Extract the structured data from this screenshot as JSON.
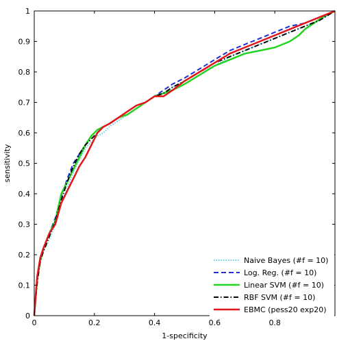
{
  "chart_data": {
    "type": "line",
    "xlabel": "1-specificity",
    "ylabel": "sensitivity",
    "xlim": [
      0,
      1
    ],
    "ylim": [
      0,
      1
    ],
    "x_ticks": [
      0,
      0.2,
      0.4,
      0.6,
      0.8
    ],
    "y_ticks": [
      0,
      0.1,
      0.2,
      0.3,
      0.4,
      0.5,
      0.6,
      0.7,
      0.8,
      0.9,
      1
    ],
    "legend_position": "bottom-right",
    "series": [
      {
        "name": "Naive Bayes (#f = 10)",
        "color": "#5fd3e3",
        "style": "dotted",
        "x": [
          0,
          0.005,
          0.01,
          0.02,
          0.03,
          0.05,
          0.07,
          0.09,
          0.11,
          0.13,
          0.15,
          0.17,
          0.19,
          0.21,
          0.23,
          0.25,
          0.28,
          0.31,
          0.34,
          0.37,
          0.4,
          0.43,
          0.46,
          0.5,
          0.55,
          0.6,
          0.65,
          0.7,
          0.75,
          0.8,
          0.85,
          0.9,
          0.95,
          1.0
        ],
        "y": [
          0,
          0.06,
          0.12,
          0.18,
          0.21,
          0.25,
          0.3,
          0.37,
          0.42,
          0.47,
          0.51,
          0.55,
          0.57,
          0.59,
          0.6,
          0.62,
          0.64,
          0.66,
          0.68,
          0.7,
          0.72,
          0.73,
          0.75,
          0.77,
          0.8,
          0.82,
          0.85,
          0.87,
          0.89,
          0.91,
          0.93,
          0.95,
          0.97,
          1.0
        ]
      },
      {
        "name": "Log. Reg. (#f = 10)",
        "color": "#1f2fd6",
        "style": "dashed",
        "x": [
          0,
          0.005,
          0.01,
          0.02,
          0.03,
          0.05,
          0.07,
          0.09,
          0.11,
          0.13,
          0.15,
          0.17,
          0.19,
          0.21,
          0.23,
          0.25,
          0.28,
          0.31,
          0.34,
          0.37,
          0.4,
          0.43,
          0.46,
          0.5,
          0.55,
          0.6,
          0.65,
          0.7,
          0.75,
          0.8,
          0.85,
          0.9,
          0.95,
          1.0
        ],
        "y": [
          0,
          0.07,
          0.13,
          0.19,
          0.22,
          0.27,
          0.32,
          0.39,
          0.45,
          0.5,
          0.53,
          0.56,
          0.59,
          0.61,
          0.62,
          0.63,
          0.65,
          0.67,
          0.69,
          0.7,
          0.72,
          0.74,
          0.76,
          0.78,
          0.81,
          0.84,
          0.87,
          0.89,
          0.91,
          0.93,
          0.95,
          0.96,
          0.98,
          1.0
        ]
      },
      {
        "name": "Linear SVM (#f = 10)",
        "color": "#22d322",
        "style": "solid",
        "x": [
          0,
          0.005,
          0.01,
          0.02,
          0.03,
          0.05,
          0.07,
          0.09,
          0.11,
          0.13,
          0.15,
          0.17,
          0.19,
          0.21,
          0.23,
          0.25,
          0.28,
          0.31,
          0.34,
          0.37,
          0.4,
          0.43,
          0.46,
          0.5,
          0.55,
          0.6,
          0.65,
          0.7,
          0.75,
          0.8,
          0.85,
          0.88,
          0.9,
          0.93,
          0.96,
          1.0
        ],
        "y": [
          0,
          0.06,
          0.12,
          0.18,
          0.22,
          0.27,
          0.31,
          0.4,
          0.44,
          0.48,
          0.52,
          0.56,
          0.59,
          0.61,
          0.62,
          0.63,
          0.65,
          0.66,
          0.68,
          0.7,
          0.72,
          0.73,
          0.74,
          0.76,
          0.79,
          0.82,
          0.84,
          0.86,
          0.87,
          0.88,
          0.9,
          0.92,
          0.94,
          0.96,
          0.98,
          1.0
        ]
      },
      {
        "name": "RBF SVM (#f = 10)",
        "color": "#000000",
        "style": "dashdot",
        "x": [
          0,
          0.005,
          0.01,
          0.02,
          0.03,
          0.05,
          0.07,
          0.09,
          0.11,
          0.13,
          0.15,
          0.17,
          0.19,
          0.21,
          0.23,
          0.25,
          0.28,
          0.31,
          0.34,
          0.37,
          0.4,
          0.43,
          0.46,
          0.5,
          0.55,
          0.6,
          0.65,
          0.7,
          0.75,
          0.8,
          0.85,
          0.9,
          0.95,
          1.0
        ],
        "y": [
          0,
          0.06,
          0.11,
          0.18,
          0.21,
          0.26,
          0.31,
          0.38,
          0.44,
          0.49,
          0.53,
          0.56,
          0.58,
          0.6,
          0.62,
          0.63,
          0.65,
          0.67,
          0.69,
          0.7,
          0.72,
          0.73,
          0.75,
          0.77,
          0.8,
          0.83,
          0.85,
          0.87,
          0.89,
          0.91,
          0.93,
          0.95,
          0.97,
          1.0
        ]
      },
      {
        "name": "EBMC (pess20 exp20)",
        "color": "#e4141b",
        "style": "solid",
        "x": [
          0,
          0.005,
          0.01,
          0.02,
          0.03,
          0.05,
          0.07,
          0.09,
          0.11,
          0.13,
          0.15,
          0.17,
          0.19,
          0.21,
          0.23,
          0.25,
          0.28,
          0.31,
          0.34,
          0.37,
          0.4,
          0.43,
          0.46,
          0.5,
          0.55,
          0.6,
          0.65,
          0.7,
          0.75,
          0.8,
          0.85,
          0.9,
          0.95,
          1.0
        ],
        "y": [
          0,
          0.07,
          0.13,
          0.19,
          0.22,
          0.27,
          0.3,
          0.37,
          0.41,
          0.45,
          0.49,
          0.52,
          0.56,
          0.6,
          0.62,
          0.63,
          0.65,
          0.67,
          0.69,
          0.7,
          0.72,
          0.72,
          0.74,
          0.77,
          0.8,
          0.83,
          0.86,
          0.88,
          0.9,
          0.92,
          0.94,
          0.96,
          0.98,
          1.0
        ]
      }
    ]
  }
}
